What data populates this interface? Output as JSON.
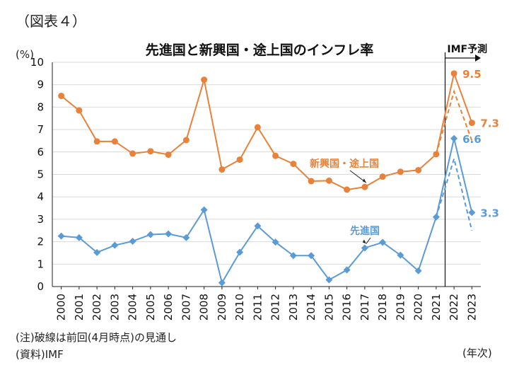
{
  "figure_label": "（図表４）",
  "note": "(注)破線は前回(4月時点)の見通し",
  "source": "(資料)IMF",
  "colors": {
    "emerging": "#E8823A",
    "advanced": "#5B9BD5",
    "grid": "#D9D9D9",
    "axis": "#222222"
  },
  "chart_data": {
    "type": "line",
    "title": "先進国と新興国・途上国のインフレ率",
    "ylabel": "(%)",
    "xlabel": "(年次)",
    "ylim": [
      0,
      10
    ],
    "yticks": [
      0,
      1,
      2,
      3,
      4,
      5,
      6,
      7,
      8,
      9,
      10
    ],
    "categories": [
      "2000",
      "2001",
      "2002",
      "2003",
      "2004",
      "2005",
      "2006",
      "2007",
      "2008",
      "2009",
      "2010",
      "2011",
      "2012",
      "2013",
      "2014",
      "2015",
      "2016",
      "2017",
      "2018",
      "2019",
      "2020",
      "2021",
      "2022",
      "2023"
    ],
    "grid": true,
    "forecast_label": "IMF予測",
    "forecast_start": "2021",
    "series": [
      {
        "name": "新興国・途上国",
        "marker": "circle",
        "values": [
          8.5,
          7.85,
          6.47,
          6.47,
          5.93,
          6.03,
          5.88,
          6.53,
          9.22,
          5.22,
          5.66,
          7.1,
          5.83,
          5.47,
          4.7,
          4.72,
          4.32,
          4.44,
          4.9,
          5.12,
          5.19,
          5.9,
          9.5,
          7.3
        ],
        "previous_forecast": {
          "x": [
            "2021",
            "2022",
            "2023"
          ],
          "values": [
            5.9,
            8.7,
            6.5
          ]
        },
        "end_labels": [
          {
            "x": "2022",
            "text": "9.5"
          },
          {
            "x": "2023",
            "text": "7.3"
          }
        ]
      },
      {
        "name": "先進国",
        "marker": "diamond",
        "values": [
          2.25,
          2.18,
          1.52,
          1.84,
          2.02,
          2.32,
          2.35,
          2.18,
          3.42,
          0.17,
          1.53,
          2.7,
          1.98,
          1.38,
          1.38,
          0.3,
          0.74,
          1.72,
          1.97,
          1.4,
          0.7,
          3.1,
          6.6,
          3.3
        ],
        "previous_forecast": {
          "x": [
            "2021",
            "2022",
            "2023"
          ],
          "values": [
            3.1,
            5.7,
            2.5
          ]
        },
        "end_labels": [
          {
            "x": "2022",
            "text": "6.6"
          },
          {
            "x": "2023",
            "text": "3.3"
          }
        ]
      }
    ]
  }
}
